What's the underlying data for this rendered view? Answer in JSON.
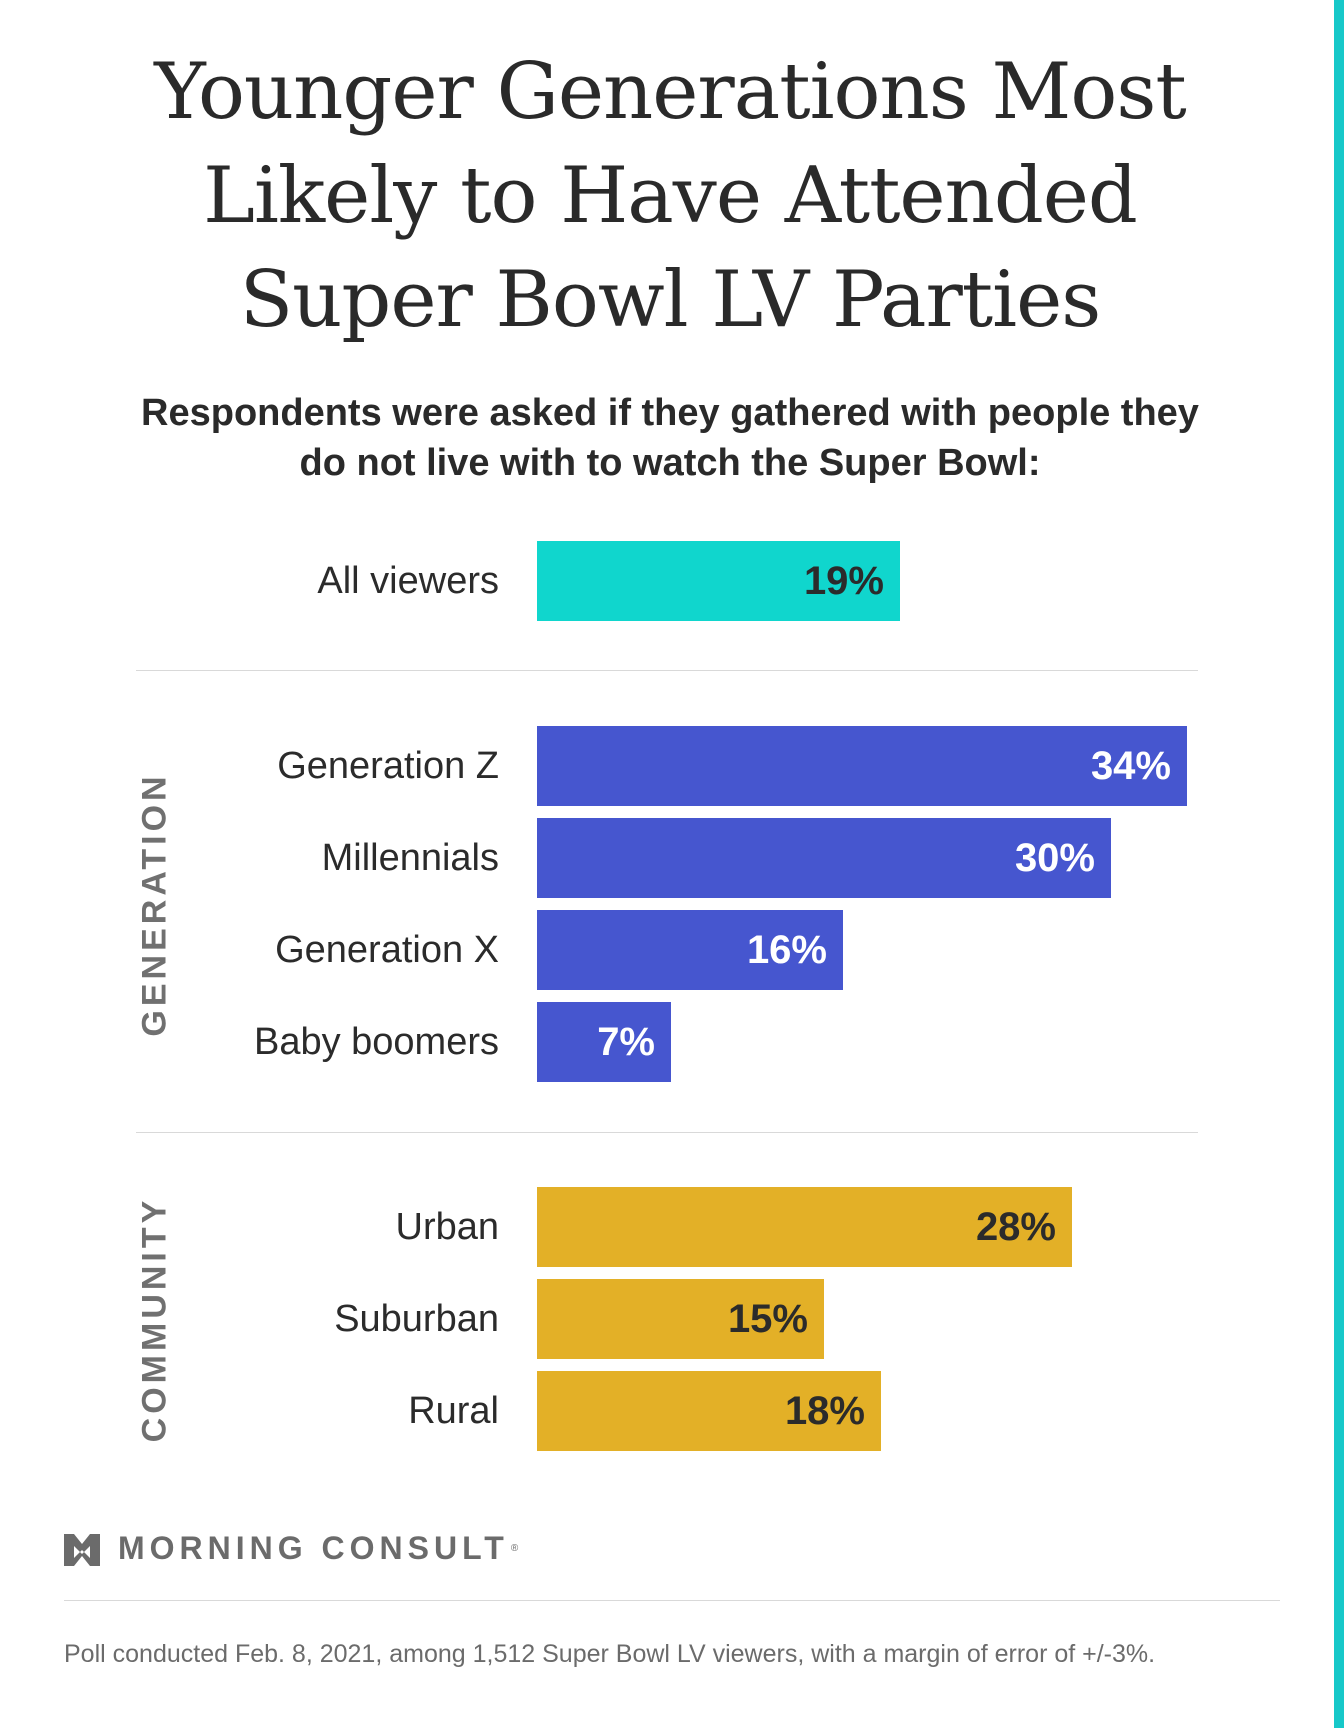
{
  "colors": {
    "accent_stripe": "#17c8c9",
    "all_viewers": "#10d6cd",
    "generation": "#4656cf",
    "community": "#e3b027",
    "dark_text": "#2b2b2b",
    "light_text": "#ffffff"
  },
  "chart_data": {
    "type": "bar",
    "orientation": "horizontal",
    "title": "Younger Generations Most Likely to Have Attended Super Bowl LV Parties",
    "subtitle": "Respondents were asked if they gathered with people they do not live with to watch the Super Bowl:",
    "value_suffix": "%",
    "xlim": [
      0,
      34
    ],
    "groups": [
      {
        "name": "",
        "color": "#10d6cd",
        "label_color": "#2b2b2b",
        "categories": [
          "All viewers"
        ],
        "values": [
          19
        ],
        "labels": [
          "19%"
        ]
      },
      {
        "name": "GENERATION",
        "color": "#4656cf",
        "label_color": "#ffffff",
        "categories": [
          "Generation Z",
          "Millennials",
          "Generation X",
          "Baby boomers"
        ],
        "values": [
          34,
          30,
          16,
          7
        ],
        "labels": [
          "34%",
          "30%",
          "16%",
          "7%"
        ]
      },
      {
        "name": "COMMUNITY",
        "color": "#e3b027",
        "label_color": "#2b2b2b",
        "categories": [
          "Urban",
          "Suburban",
          "Rural"
        ],
        "values": [
          28,
          15,
          18
        ],
        "labels": [
          "28%",
          "15%",
          "18%"
        ]
      }
    ],
    "grid": false,
    "legend": "none"
  },
  "brand": {
    "name": "MORNING CONSULT",
    "registered": "®",
    "icon": "morning-consult-logo-icon"
  },
  "footnote": "Poll conducted Feb. 8, 2021, among 1,512 Super Bowl LV viewers, with a margin of error of +/-3%."
}
